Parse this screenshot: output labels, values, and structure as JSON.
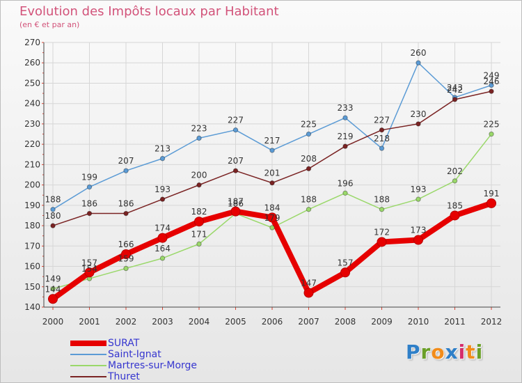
{
  "header": {
    "title": "Evolution des Impôts locaux par Habitant",
    "subtitle": "(en € et par an)"
  },
  "brand": {
    "letters": [
      "P",
      "r",
      "o",
      "x",
      "i",
      "t",
      "i"
    ],
    "colors": [
      "#2e7fc8",
      "#6a9f27",
      "#f28c1a",
      "#2e7fc8",
      "#d52d6b",
      "#f28c1a",
      "#6a9f27"
    ]
  },
  "chart_data": {
    "type": "line",
    "x": [
      "2000",
      "2001",
      "2002",
      "2003",
      "2004",
      "2005",
      "2006",
      "2007",
      "2008",
      "2009",
      "2010",
      "2011",
      "2012"
    ],
    "ylim": [
      140,
      270
    ],
    "yticks": [
      140,
      150,
      160,
      170,
      180,
      190,
      200,
      210,
      220,
      230,
      240,
      250,
      260,
      270
    ],
    "grid": true,
    "legend_position": "bottom-left",
    "series": [
      {
        "name": "Saint-Ignat",
        "color": "#5b9bd5",
        "values": [
          188,
          199,
          207,
          213,
          223,
          227,
          217,
          225,
          233,
          218,
          260,
          243,
          249
        ]
      },
      {
        "name": "Thuret",
        "color": "#7a2323",
        "values": [
          180,
          186,
          186,
          193,
          200,
          207,
          201,
          208,
          219,
          227,
          230,
          242,
          246
        ]
      },
      {
        "name": "Martres-sur-Morge",
        "color": "#9ad86a",
        "values": [
          149,
          154,
          159,
          164,
          171,
          186,
          179,
          188,
          196,
          188,
          193,
          202,
          225
        ]
      },
      {
        "name": "SURAT",
        "color": "#e60000",
        "values": [
          144,
          157,
          166,
          174,
          182,
          187,
          184,
          147,
          157,
          172,
          173,
          185,
          191
        ]
      }
    ],
    "legend_order": [
      "SURAT",
      "Saint-Ignat",
      "Martres-sur-Morge",
      "Thuret"
    ]
  }
}
